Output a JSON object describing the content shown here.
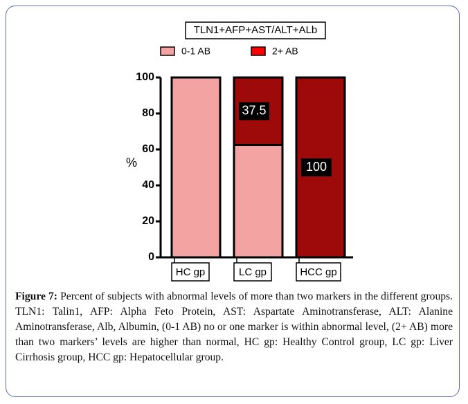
{
  "chart_data": {
    "type": "stacked_bar",
    "title": "TLN1+AFP+AST/ALT+ALb",
    "y_label": "%",
    "categories": [
      "HC gp",
      "LC gp",
      "HCC gp"
    ],
    "series": [
      {
        "name": "0-1 AB",
        "color": "#f4a3a3",
        "values": [
          100,
          62.5,
          0
        ]
      },
      {
        "name": "2+ AB",
        "color": "#9e0a0a",
        "legend_color": "#ff0000",
        "values": [
          0,
          37.5,
          100
        ]
      }
    ],
    "ylim": [
      0,
      100
    ],
    "yticks": [
      0,
      20,
      40,
      60,
      80,
      100
    ]
  },
  "caption": {
    "label": "Figure 7:",
    "text": "Percent of subjects with abnormal levels of more than two markers in the different groups. TLN1: Talin1, AFP: Alpha Feto Protein, AST: Aspartate Aminotransferase, ALT: Alanine Aminotransferase, Alb, Albumin, (0-1 AB) no or one marker is within abnormal level, (2+ AB) more than two markers’ levels are higher than normal, HC gp: Healthy Control group, LC gp: Liver Cirrhosis group, HCC gp: Hepatocellular group."
  }
}
